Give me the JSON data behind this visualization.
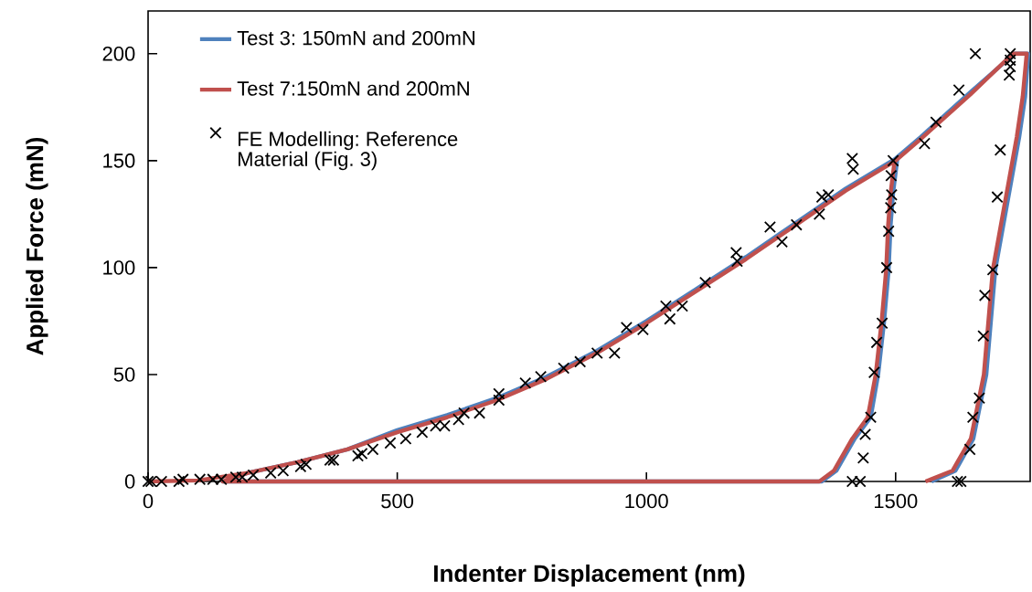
{
  "chart_data": {
    "type": "line",
    "xlabel": "Indenter Displacement (nm)",
    "ylabel": "Applied Force (mN)",
    "xlim": [
      0,
      1770
    ],
    "ylim": [
      0,
      220
    ],
    "xticks": [
      0,
      500,
      1000,
      1500
    ],
    "yticks": [
      0,
      50,
      100,
      150,
      200
    ],
    "grid": false,
    "legend": "top left",
    "line_style": "solid",
    "series": [
      {
        "name": "Test 3: 150mN and 200mN",
        "color": "#4f81bd",
        "type": "line",
        "marker": "none",
        "x": [
          300,
          400,
          500,
          600,
          700,
          800,
          900,
          1000,
          1100,
          1200,
          1300,
          1400,
          1500,
          1503,
          1495,
          1490,
          1486,
          1477,
          1465,
          1450,
          1418,
          1381,
          1352,
          150,
          200,
          300,
          400,
          500,
          600,
          700,
          800,
          900,
          1000,
          1100,
          1200,
          1300,
          1400,
          1500,
          1550,
          1650,
          1738,
          1766,
          1760,
          1748,
          1700,
          1682,
          1656,
          1620,
          1572
        ],
        "values": [
          9,
          15,
          24,
          31,
          39,
          49,
          61,
          75,
          90,
          105,
          121,
          137,
          151,
          150,
          135,
          120,
          99,
          75,
          50,
          30,
          20,
          5,
          0,
          0,
          4,
          9,
          15,
          24,
          31,
          39,
          49,
          61,
          75,
          90,
          105,
          121,
          137,
          151,
          161,
          182,
          200,
          200,
          180,
          161,
          99,
          50,
          20,
          5,
          0
        ]
      },
      {
        "name": "Test 7:150mN and 200mN",
        "color": "#c0504d",
        "type": "line",
        "marker": "none",
        "x": [
          0,
          100,
          200,
          300,
          400,
          500,
          600,
          700,
          800,
          900,
          1000,
          1100,
          1200,
          1300,
          1400,
          1500,
          1498,
          1490,
          1485,
          1481,
          1472,
          1460,
          1444,
          1413,
          1376,
          1347,
          150,
          200,
          300,
          400,
          500,
          600,
          700,
          800,
          900,
          1000,
          1100,
          1200,
          1300,
          1400,
          1500,
          1550,
          1650,
          1735,
          1763,
          1755,
          1743,
          1695,
          1677,
          1651,
          1614,
          1560
        ],
        "values": [
          0,
          0.5,
          4,
          9,
          15,
          23,
          30,
          38,
          48,
          60,
          74,
          89,
          104,
          120,
          136,
          150,
          150,
          135,
          120,
          99,
          75,
          50,
          30,
          20,
          5,
          0,
          0,
          4,
          9,
          15,
          23,
          30,
          38,
          48,
          60,
          74,
          89,
          104,
          120,
          136,
          150,
          160,
          181,
          200,
          200,
          180,
          161,
          99,
          50,
          20,
          5,
          0
        ]
      },
      {
        "name": "FE Modelling: Reference Material (Fig. 3)",
        "color": "#000000",
        "type": "scatter",
        "marker": "cross",
        "x": [
          0,
          6,
          27,
          62,
          70,
          104,
          130,
          147,
          176,
          189,
          211,
          246,
          271,
          306,
          317,
          365,
          372,
          421,
          429,
          451,
          486,
          517,
          550,
          577,
          595,
          623,
          634,
          665,
          704,
          704,
          757,
          788,
          834,
          867,
          901,
          936,
          960,
          993,
          1039,
          1047,
          1072,
          1118,
          1180,
          1182,
          1248,
          1272,
          1301,
          1347,
          1352,
          1365,
          1413,
          1415,
          1558,
          1581,
          1627,
          1660,
          1730,
          1730,
          1730,
          1728,
          1495,
          1491,
          1492,
          1490,
          1486,
          1482,
          1473,
          1462,
          1457,
          1450,
          1439,
          1435,
          1413,
          1429,
          1710,
          1704,
          1695,
          1679,
          1676,
          1668,
          1655,
          1649,
          1624,
          1631
        ],
        "values": [
          0,
          0,
          0,
          0,
          1,
          1,
          1,
          1,
          2,
          2,
          3,
          4,
          5,
          7,
          8,
          10,
          10,
          12,
          13,
          15,
          18,
          20,
          23,
          26,
          26,
          29,
          32,
          32,
          38,
          41,
          46,
          49,
          53,
          56,
          60,
          60,
          72,
          71,
          82,
          76,
          82,
          93,
          107,
          103,
          119,
          112,
          120,
          125,
          133,
          134,
          151,
          146,
          158,
          168,
          183,
          200,
          200,
          197,
          194,
          190,
          150,
          143,
          134,
          128,
          117,
          100,
          74,
          65,
          51,
          30,
          22,
          11,
          0,
          0,
          155,
          133,
          99,
          87,
          68,
          39,
          30,
          15,
          0,
          0
        ]
      }
    ]
  }
}
